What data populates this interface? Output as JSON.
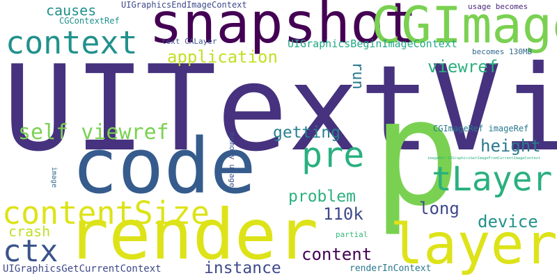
{
  "words": [
    {
      "id": "uitextview",
      "text": "UITextView",
      "color": "#46327e",
      "orientation": "horizontal"
    },
    {
      "id": "p",
      "text": "p",
      "color": "#7ad151",
      "orientation": "horizontal"
    },
    {
      "id": "code",
      "text": "code",
      "color": "#365c8d",
      "orientation": "horizontal"
    },
    {
      "id": "render",
      "text": "render",
      "color": "#dde318",
      "orientation": "horizontal"
    },
    {
      "id": "snapshot",
      "text": "snapshot",
      "color": "#440154",
      "orientation": "horizontal"
    },
    {
      "id": "cgimage",
      "text": "CGImage",
      "color": "#7ad151",
      "orientation": "horizontal"
    },
    {
      "id": "layer",
      "text": "layer",
      "color": "#dde318",
      "orientation": "horizontal"
    },
    {
      "id": "contentsize",
      "text": "contentSize",
      "color": "#dde318",
      "orientation": "horizontal"
    },
    {
      "id": "context",
      "text": "context",
      "color": "#21918c",
      "orientation": "horizontal"
    },
    {
      "id": "tlayer",
      "text": "tLayer",
      "color": "#2ab07f",
      "orientation": "horizontal"
    },
    {
      "id": "pre",
      "text": "pre",
      "color": "#2ab07f",
      "orientation": "horizontal"
    },
    {
      "id": "ctx",
      "text": "ctx",
      "color": "#3b528b",
      "orientation": "horizontal"
    },
    {
      "id": "self-viewref",
      "text": "self viewref",
      "color": "#7ad151",
      "orientation": "horizontal"
    },
    {
      "id": "instance",
      "text": "instance",
      "color": "#3e4989",
      "orientation": "horizontal"
    },
    {
      "id": "content",
      "text": "content",
      "color": "#440154",
      "orientation": "horizontal"
    },
    {
      "id": "application",
      "text": "application",
      "color": "#c2df23",
      "orientation": "horizontal"
    },
    {
      "id": "getting",
      "text": "getting",
      "color": "#26828e",
      "orientation": "horizontal"
    },
    {
      "id": "problem",
      "text": "problem",
      "color": "#2ab07f",
      "orientation": "horizontal"
    },
    {
      "id": "110k",
      "text": "110k",
      "color": "#3e4989",
      "orientation": "horizontal"
    },
    {
      "id": "height",
      "text": "height",
      "color": "#2a788e",
      "orientation": "horizontal"
    },
    {
      "id": "viewref",
      "text": "viewref",
      "color": "#2ab07f",
      "orientation": "horizontal"
    },
    {
      "id": "long",
      "text": "long",
      "color": "#3e4989",
      "orientation": "horizontal"
    },
    {
      "id": "device",
      "text": "device",
      "color": "#21918c",
      "orientation": "horizontal"
    },
    {
      "id": "causes",
      "text": "causes",
      "color": "#21918c",
      "orientation": "horizontal"
    },
    {
      "id": "crash",
      "text": "crash",
      "color": "#bddf26",
      "orientation": "horizontal"
    },
    {
      "id": "run",
      "text": "run",
      "color": "#2a788e",
      "orientation": "vertical"
    },
    {
      "id": "uigraphicsbeginimagecontext",
      "text": "UIGraphicsBeginImageContext",
      "color": "#22a884",
      "orientation": "horizontal"
    },
    {
      "id": "uigraphicsgetcurrentcontext",
      "text": "UIGraphicsGetCurrentContext",
      "color": "#3e4989",
      "orientation": "horizontal"
    },
    {
      "id": "rendernincontext",
      "text": "renderInContext",
      "color": "#2a788e",
      "orientation": "horizontal"
    },
    {
      "id": "cgimageref-imageref",
      "text": "CGImageRef imageRef",
      "color": "#2a788e",
      "orientation": "horizontal"
    },
    {
      "id": "uigraphicsendimagecontext",
      "text": "UIGraphicsEndImageContext",
      "color": "#3e4989",
      "orientation": "horizontal"
    },
    {
      "id": "cgcontextref",
      "text": "CGContextRef",
      "color": "#21918c",
      "orientation": "horizontal"
    },
    {
      "id": "text-calayer",
      "text": "text CALayer",
      "color": "#3b528b",
      "orientation": "horizontal"
    },
    {
      "id": "usage-becomes",
      "text": "usage becomes",
      "color": "#482878",
      "orientation": "horizontal"
    },
    {
      "id": "becomes-130mb",
      "text": "becomes 130MB",
      "color": "#31688e",
      "orientation": "horizontal"
    },
    {
      "id": "memory-usage",
      "text": "memory usage",
      "color": "#3b528b",
      "orientation": "vertical"
    },
    {
      "id": "image",
      "text": "image",
      "color": "#31688e",
      "orientation": "vertical"
    },
    {
      "id": "partial",
      "text": "partial",
      "color": "#35b779",
      "orientation": "horizontal"
    },
    {
      "id": "imageref-long",
      "text": "imageRef UIGraphicsGetImageFromCurrentImageContext",
      "color": "#2ab07f",
      "orientation": "horizontal"
    }
  ]
}
